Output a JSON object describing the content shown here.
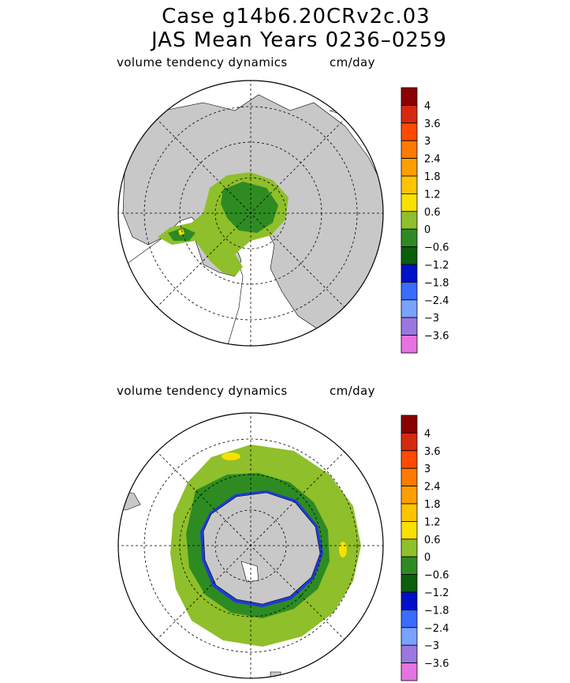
{
  "title": {
    "line1": "Case g14b6.20CRv2c.03",
    "line2": "JAS Mean    Years 0236–0259"
  },
  "panels": [
    {
      "name": "north",
      "field_label": "volume tendency dynamics",
      "units": "cm/day"
    },
    {
      "name": "south",
      "field_label": "volume tendency dynamics",
      "units": "cm/day"
    }
  ],
  "legend": {
    "labels": [
      "4",
      "3.6",
      "3",
      "2.4",
      "1.8",
      "1.2",
      "0.6",
      "0",
      "−0.6",
      "−1.2",
      "−1.8",
      "−2.4",
      "−3",
      "−3.6"
    ],
    "colors": [
      "#8b0000",
      "#d42a10",
      "#ff4a00",
      "#ff7a00",
      "#ff9e00",
      "#ffc400",
      "#f8e000",
      "#8fbf2a",
      "#2e8b22",
      "#0b5e0b",
      "#0010c8",
      "#3a6cff",
      "#7aa2ff",
      "#9a78e0",
      "#e673e0"
    ]
  },
  "map_colors": {
    "land": "#c8c8c8",
    "ocean": "#ffffff",
    "ice_green_light": "#8fbf2a",
    "ice_green_dark": "#2e8b22",
    "ice_yellow": "#f8e000",
    "ice_blue": "#1e3cd8"
  }
}
